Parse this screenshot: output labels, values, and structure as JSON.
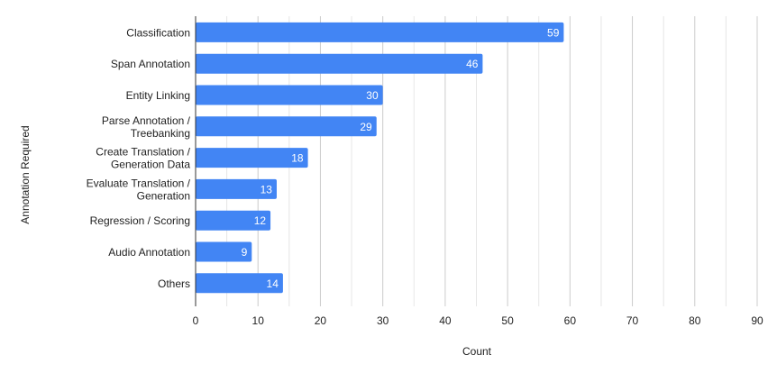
{
  "chart_data": {
    "type": "bar",
    "orientation": "horizontal",
    "title": "",
    "xlabel": "Count",
    "ylabel": "Annotation Required",
    "xlim": [
      0,
      90
    ],
    "x_ticks": [
      0,
      10,
      20,
      30,
      40,
      50,
      60,
      70,
      80,
      90
    ],
    "grid": true,
    "categories": [
      "Classification",
      "Span Annotation",
      "Entity Linking",
      "Parse Annotation / Treebanking",
      "Create Translation / Generation Data",
      "Evaluate Translation / Generation",
      "Regression / Scoring",
      "Audio Annotation",
      "Others"
    ],
    "values": [
      59,
      46,
      30,
      29,
      18,
      13,
      12,
      9,
      14
    ],
    "bar_color": "#4285f4",
    "data_label_color": "#ffffff",
    "axis_text_color": "#222222",
    "gridline_color": "#cccccc",
    "axis_color": "#333333"
  }
}
